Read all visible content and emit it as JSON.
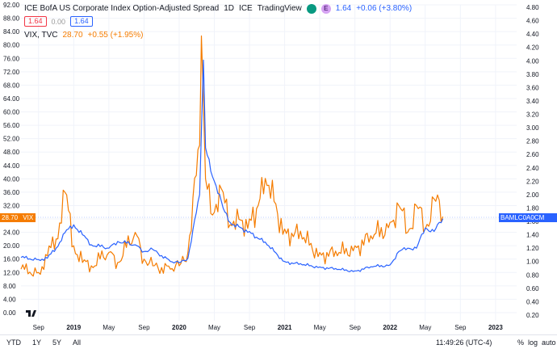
{
  "legend": {
    "title": "ICE BofA US Corporate Index Option-Adjusted Spread",
    "interval": "1D",
    "exchange": "ICE",
    "brand": "TradingView",
    "e_badge": "E",
    "last_value": "1.64",
    "change": "+0.06 (+3.80%)",
    "bid": "1.64",
    "spread": "0.00",
    "ask": "1.64",
    "vix_label": "VIX, TVC",
    "vix_value": "28.70",
    "vix_change": "+0.55 (+1.95%)"
  },
  "left_axis_labels": [
    "92.00",
    "88.00",
    "84.00",
    "80.00",
    "76.00",
    "72.00",
    "68.00",
    "64.00",
    "60.00",
    "56.00",
    "52.00",
    "48.00",
    "44.00",
    "40.00",
    "36.00",
    "32.00",
    "28.00",
    "24.00",
    "20.00",
    "16.00",
    "12.00",
    "8.00",
    "4.00",
    "0.00"
  ],
  "right_axis_labels": [
    "4.80",
    "4.60",
    "4.40",
    "4.20",
    "4.00",
    "3.80",
    "3.60",
    "3.40",
    "3.20",
    "3.00",
    "2.80",
    "2.60",
    "2.40",
    "2.20",
    "2.00",
    "1.80",
    "1.60",
    "1.40",
    "1.20",
    "1.00",
    "0.80",
    "0.60",
    "0.40",
    "0.20"
  ],
  "time_labels": [
    "Sep",
    "2019",
    "May",
    "Sep",
    "2020",
    "May",
    "Sep",
    "2021",
    "May",
    "Sep",
    "2022",
    "May",
    "Sep",
    "2023"
  ],
  "time_bold": [
    "2019",
    "2020",
    "2021",
    "2022",
    "2023"
  ],
  "left_tag": "28.70",
  "left_tag_vix": "VIX",
  "right_tag_name": "BAMLC0A0CM",
  "right_tag_value": "1.64",
  "bottom_bar": {
    "ranges": [
      "YTD",
      "1Y",
      "5Y",
      "All"
    ],
    "time": "11:49:26 (UTC-4)",
    "pct": "%",
    "log": "log",
    "auto": "auto"
  },
  "colors": {
    "oas": "#2962ff",
    "vix": "#f57c00",
    "grid": "#f0f3fa"
  },
  "chart_data": {
    "type": "line",
    "title": "ICE BofA US Corporate Index Option-Adjusted Spread",
    "series": [
      {
        "name": "ICE BofA US Corporate Index Option-Adjusted Spread",
        "axis": "right",
        "x": [
          "2018-07",
          "2018-09",
          "2018-10",
          "2018-11",
          "2018-12",
          "2019-01",
          "2019-02",
          "2019-03",
          "2019-05",
          "2019-06",
          "2019-08",
          "2019-09",
          "2019-10",
          "2019-12",
          "2020-01",
          "2020-02",
          "2020-03-10",
          "2020-03-23",
          "2020-04",
          "2020-05",
          "2020-06",
          "2020-07",
          "2020-09",
          "2020-11",
          "2021-01",
          "2021-03",
          "2021-05",
          "2021-07",
          "2021-09",
          "2021-11",
          "2022-01",
          "2022-02",
          "2022-03",
          "2022-04",
          "2022-05",
          "2022-06",
          "2022-07"
        ],
        "values": [
          1.06,
          1.03,
          1.05,
          1.2,
          1.43,
          1.55,
          1.4,
          1.25,
          1.2,
          1.3,
          1.25,
          1.15,
          1.18,
          1.0,
          0.98,
          1.05,
          2.0,
          4.01,
          2.7,
          2.2,
          1.8,
          1.55,
          1.45,
          1.25,
          1.0,
          0.95,
          0.92,
          0.88,
          0.86,
          0.92,
          0.95,
          1.15,
          1.2,
          1.2,
          1.5,
          1.45,
          1.64
        ]
      },
      {
        "name": "VIX, TVC",
        "axis": "left",
        "x": [
          "2018-07",
          "2018-09",
          "2018-10",
          "2018-11",
          "2018-12",
          "2019-01",
          "2019-02",
          "2019-03",
          "2019-05",
          "2019-06",
          "2019-08",
          "2019-09",
          "2019-10",
          "2019-12",
          "2020-01",
          "2020-02",
          "2020-03-10",
          "2020-03-16",
          "2020-04",
          "2020-05",
          "2020-06",
          "2020-07",
          "2020-09",
          "2020-11",
          "2021-01",
          "2021-03",
          "2021-05",
          "2021-07",
          "2021-09",
          "2021-11",
          "2022-01",
          "2022-02",
          "2022-03",
          "2022-04",
          "2022-05",
          "2022-06",
          "2022-07"
        ],
        "values": [
          13,
          12,
          17,
          22,
          36,
          20,
          15,
          14,
          18,
          15,
          24,
          16,
          14,
          13,
          14,
          18,
          50,
          82.7,
          40,
          30,
          36,
          26,
          28,
          38,
          25,
          22,
          18,
          17,
          20,
          22,
          27,
          32,
          24,
          32,
          25,
          34,
          28.7
        ]
      }
    ],
    "x_ticks": [
      "Sep",
      "2019",
      "May",
      "Sep",
      "2020",
      "May",
      "Sep",
      "2021",
      "May",
      "Sep",
      "2022",
      "May",
      "Sep",
      "2023"
    ],
    "left_ylim": [
      0,
      92
    ],
    "right_ylim": [
      0.2,
      4.8
    ],
    "grid": true
  }
}
